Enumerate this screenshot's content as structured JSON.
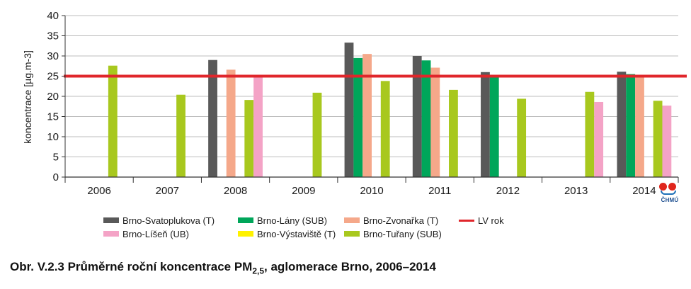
{
  "chart_data": {
    "type": "bar",
    "ylabel": "koncentrace [µg.m-3]",
    "ylim": [
      0,
      40
    ],
    "yticks": [
      0,
      5,
      10,
      15,
      20,
      25,
      30,
      35,
      40
    ],
    "categories": [
      "2006",
      "2007",
      "2008",
      "2009",
      "2010",
      "2011",
      "2012",
      "2013",
      "2014"
    ],
    "series": [
      {
        "name": "Brno-Svatoplukova (T)",
        "color": "#595959",
        "values": [
          null,
          null,
          29.0,
          null,
          33.3,
          30.0,
          26.0,
          null,
          26.1
        ]
      },
      {
        "name": "Brno-Lány (SUB)",
        "color": "#00a65a",
        "values": [
          null,
          null,
          null,
          null,
          29.5,
          28.9,
          24.7,
          null,
          25.5
        ]
      },
      {
        "name": "Brno-Zvonařka (T)",
        "color": "#f5a88a",
        "values": [
          null,
          null,
          26.6,
          null,
          30.5,
          27.1,
          null,
          null,
          25.2
        ]
      },
      {
        "name": "Brno-Výstaviště (T)",
        "color": "#fff200",
        "values": [
          null,
          null,
          null,
          null,
          null,
          null,
          null,
          null,
          null
        ]
      },
      {
        "name": "Brno-Tuřany (SUB)",
        "color": "#a8c81e",
        "values": [
          27.6,
          20.4,
          19.1,
          20.9,
          23.8,
          21.6,
          19.4,
          21.1,
          18.9
        ]
      },
      {
        "name": "Brno-Líšeň (UB)",
        "color": "#f4a3c6",
        "values": [
          null,
          null,
          25.3,
          null,
          null,
          null,
          null,
          18.6,
          17.7
        ]
      }
    ],
    "limit_line": {
      "name": "LV rok",
      "value": 25,
      "color": "#e0262b"
    },
    "legend_placement": "bottom",
    "grid": true
  },
  "legend": {
    "items": [
      {
        "label": "Brno-Svatoplukova (T)",
        "color": "#595959",
        "kind": "box"
      },
      {
        "label": "Brno-Lány (SUB)",
        "color": "#00a65a",
        "kind": "box"
      },
      {
        "label": "Brno-Zvonařka (T)",
        "color": "#f5a88a",
        "kind": "box"
      },
      {
        "label": "LV rok",
        "color": "#e0262b",
        "kind": "line"
      },
      {
        "label": "Brno-Líšeň (UB)",
        "color": "#f4a3c6",
        "kind": "box"
      },
      {
        "label": "Brno-Výstaviště (T)",
        "color": "#fff200",
        "kind": "box"
      },
      {
        "label": "Brno-Tuřany (SUB)",
        "color": "#a8c81e",
        "kind": "box"
      }
    ]
  },
  "caption": {
    "prefix": "Obr. V.2.3  Průměrné roční koncentrace PM",
    "subscript": "2,5",
    "suffix": ", aglomerace Brno, 2006–2014"
  },
  "logo": {
    "text": "ČHMÚ",
    "icon": "chmu-logo-icon"
  }
}
